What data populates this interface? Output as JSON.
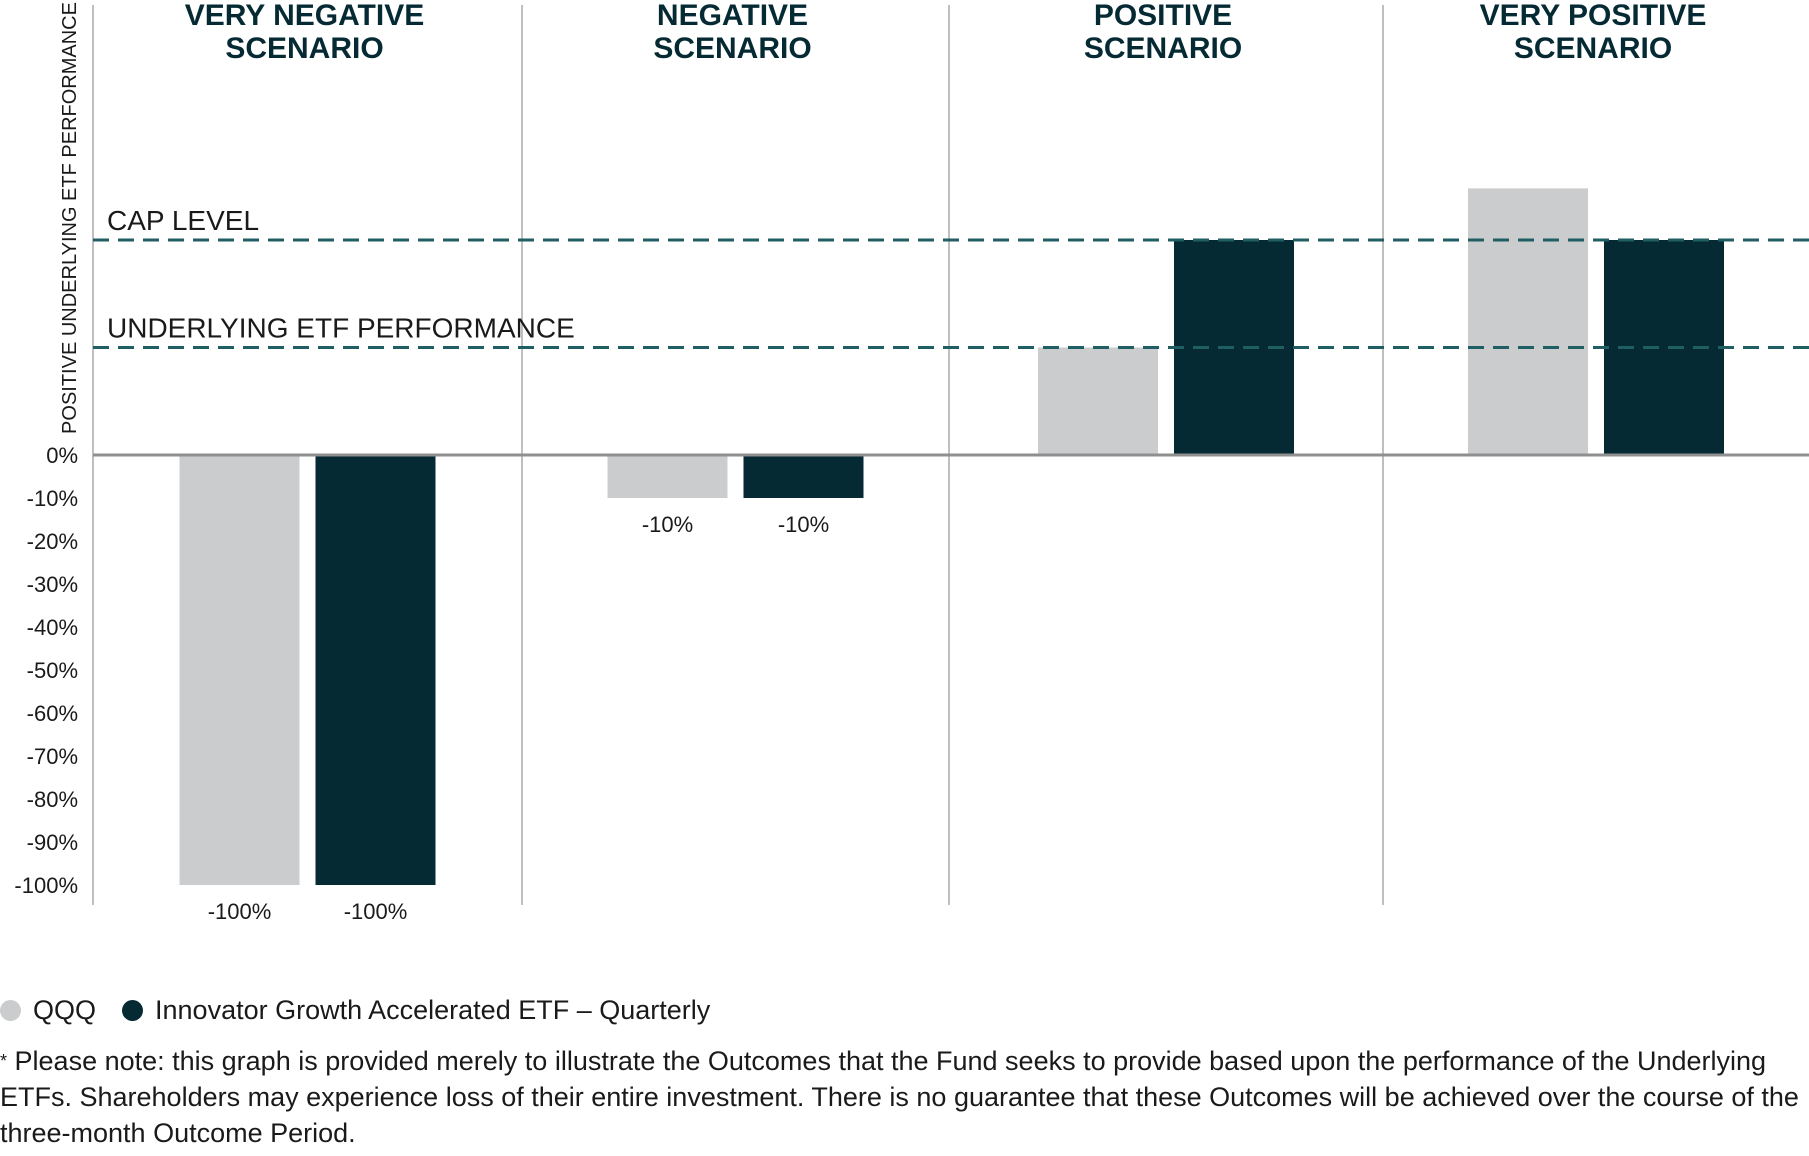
{
  "chart_data": {
    "type": "bar",
    "categories": [
      "VERY NEGATIVE\nSCENARIO",
      "NEGATIVE\nSCENARIO",
      "POSITIVE\nSCENARIO",
      "VERY POSITIVE\nSCENARIO"
    ],
    "series": [
      {
        "name": "QQQ",
        "color": "#cbcccd",
        "values": [
          -100,
          -10,
          25,
          62
        ],
        "labels": [
          "-100%",
          "-10%",
          "",
          ""
        ]
      },
      {
        "name": "Innovator Growth Accelerated ETF – Quarterly",
        "color": "#052a33",
        "values": [
          -100,
          -10,
          50,
          50
        ],
        "labels": [
          "-100%",
          "-10%",
          "",
          ""
        ]
      }
    ],
    "yticks": [
      "0%",
      "-10%",
      "-20%",
      "-30%",
      "-40%",
      "-50%",
      "-60%",
      "-70%",
      "-80%",
      "-90%",
      "-100%"
    ],
    "ylabel": "POSITIVE UNDERLYING ETF PERFORMANCE",
    "ylim": [
      -100,
      100
    ],
    "reference_lines": [
      {
        "label": "CAP LEVEL",
        "value": 50,
        "style": "dashed",
        "color": "#1f5f63"
      },
      {
        "label": "UNDERLYING ETF PERFORMANCE",
        "value": 25,
        "style": "dashed",
        "color": "#1f5f63"
      }
    ],
    "legend_position": "bottom-left"
  },
  "legend": {
    "items": [
      {
        "label": "QQQ",
        "color": "#cbcccd"
      },
      {
        "label": "Innovator Growth Accelerated ETF – Quarterly",
        "color": "#052a33"
      }
    ]
  },
  "footnote": {
    "marker": "*",
    "text": "Please note: this graph is provided merely to illustrate the Outcomes that the Fund seeks to provide based upon the performance of the Underlying ETFs. Shareholders may experience loss of their entire investment. There is no guarantee that these Outcomes will be achieved over the course of the three-month Outcome Period."
  }
}
